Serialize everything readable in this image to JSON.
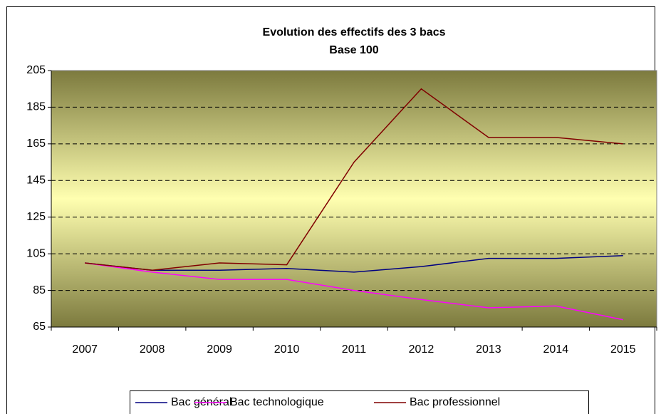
{
  "chart_data": {
    "type": "line",
    "title": "Evolution des effectifs des 3 bacs",
    "subtitle": "Base 100",
    "categories": [
      "2007",
      "2008",
      "2009",
      "2010",
      "2011",
      "2012",
      "2013",
      "2014",
      "2015"
    ],
    "series": [
      {
        "name": "Bac général",
        "color": "#000080",
        "values": [
          100,
          96,
          96,
          97,
          95,
          98,
          102.5,
          102.5,
          104
        ]
      },
      {
        "name": "Bac technologique",
        "color": "#ff00ff",
        "values": [
          100,
          95,
          91,
          91,
          85,
          80,
          75.5,
          76.5,
          69
        ]
      },
      {
        "name": "Bac professionnel",
        "color": "#800000",
        "values": [
          100,
          96,
          100,
          99,
          155,
          195,
          168.5,
          168.5,
          165
        ]
      }
    ],
    "ylim": [
      65,
      205
    ],
    "yticks": [
      65,
      85,
      105,
      125,
      145,
      165,
      185,
      205
    ],
    "grid": true,
    "legend": "bottom"
  }
}
